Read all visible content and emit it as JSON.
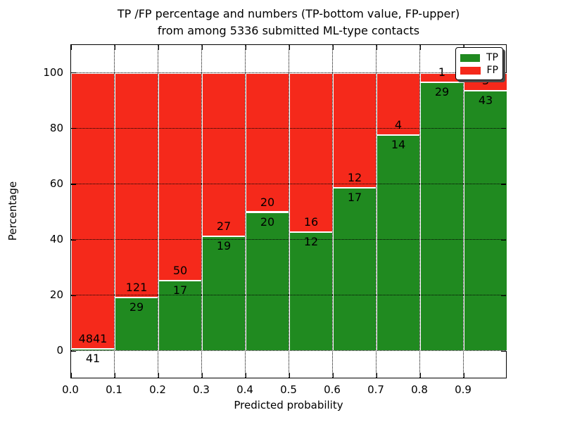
{
  "title": {
    "line1": "TP /FP percentage and numbers (TP-bottom value, FP-upper)",
    "line2": "from among 5336 submitted ML-type contacts"
  },
  "axes": {
    "xlabel": "Predicted probability",
    "ylabel": "Percentage",
    "x_tick_labels": [
      "0.0",
      "0.1",
      "0.2",
      "0.3",
      "0.4",
      "0.5",
      "0.6",
      "0.7",
      "0.8",
      "0.9"
    ],
    "y_tick_labels": [
      "0",
      "20",
      "40",
      "60",
      "80",
      "100"
    ],
    "y_tick_values": [
      0,
      20,
      40,
      60,
      80,
      100
    ]
  },
  "legend": [
    {
      "label": "TP",
      "color": "#208a20"
    },
    {
      "label": "FP",
      "color": "#f5291b"
    }
  ],
  "colors": {
    "tp": "#208a20",
    "fp": "#f5291b",
    "bar_edge": "#ffffff",
    "grid": "#000000",
    "text": "#000000"
  },
  "chart_data": {
    "type": "bar",
    "stacked": true,
    "normalized_to_percent": 100,
    "title": "TP /FP percentage and numbers (TP-bottom value, FP-upper) from among 5336 submitted ML-type contacts",
    "xlabel": "Predicted probability",
    "ylabel": "Percentage",
    "xlim": [
      0.0,
      1.0
    ],
    "ylim": [
      -10,
      110
    ],
    "grid": true,
    "legend_position": "upper right",
    "bin_starts": [
      0.0,
      0.1,
      0.2,
      0.3,
      0.4,
      0.5,
      0.6,
      0.7,
      0.8,
      0.9
    ],
    "bin_width": 0.1,
    "total_contacts": 5336,
    "series": [
      {
        "name": "TP",
        "color": "#208a20",
        "counts": [
          41,
          29,
          17,
          19,
          20,
          12,
          17,
          14,
          29,
          43
        ]
      },
      {
        "name": "FP",
        "color": "#f5291b",
        "counts": [
          4841,
          121,
          50,
          27,
          20,
          16,
          12,
          4,
          1,
          3
        ]
      }
    ],
    "tp_percent": [
      0.84,
      19.33,
      25.37,
      41.3,
      50.0,
      42.86,
      58.62,
      77.78,
      96.67,
      93.48
    ]
  }
}
